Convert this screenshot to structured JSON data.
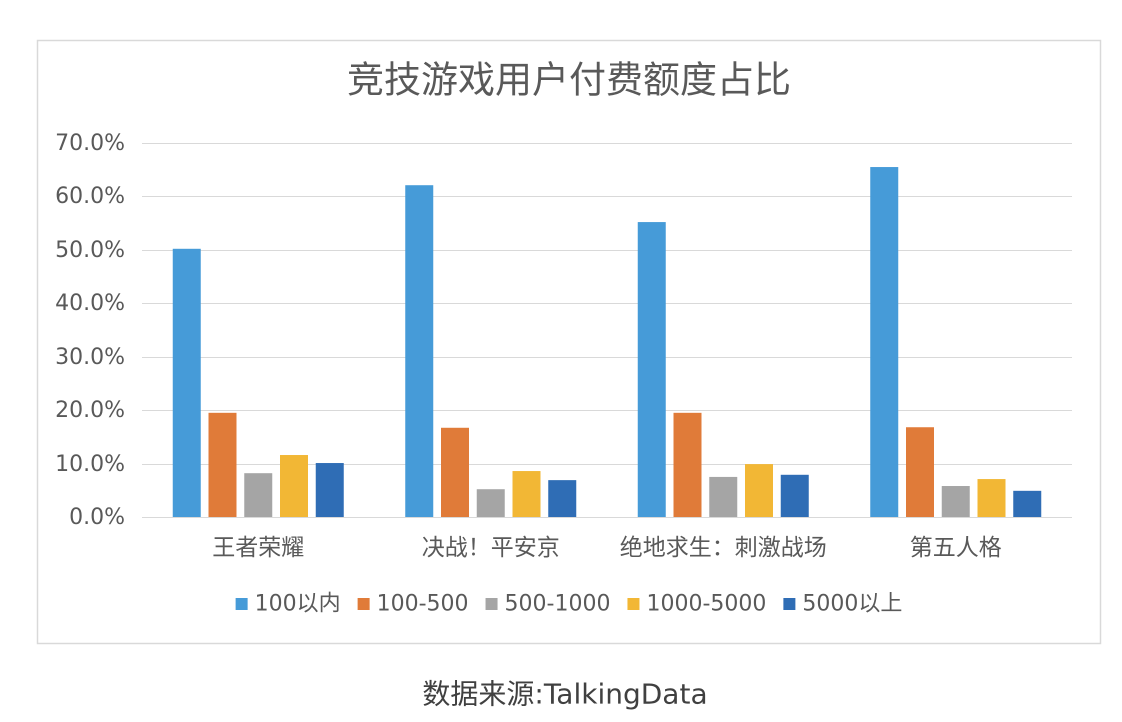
{
  "chart_data": {
    "type": "bar",
    "title": "竞技游戏用户付费额度占比",
    "categories": [
      "王者荣耀",
      "决战！平安京",
      "绝地求生：刺激战场",
      "第五人格"
    ],
    "series": [
      {
        "name": "100以内",
        "color": "#469bd8",
        "values": [
          50.2,
          62.1,
          55.2,
          65.5
        ]
      },
      {
        "name": "100-500",
        "color": "#e07b39",
        "values": [
          19.5,
          16.7,
          19.5,
          16.8
        ]
      },
      {
        "name": "500-1000",
        "color": "#a5a5a5",
        "values": [
          8.2,
          5.2,
          7.5,
          5.8
        ]
      },
      {
        "name": "1000-5000",
        "color": "#f2b735",
        "values": [
          11.6,
          8.6,
          9.9,
          7.1
        ]
      },
      {
        "name": "5000以上",
        "color": "#2f6db5",
        "values": [
          10.1,
          6.9,
          7.9,
          4.9
        ]
      }
    ],
    "ylim": [
      0,
      70
    ],
    "yticks": [
      {
        "value": 0,
        "label": "0.0%"
      },
      {
        "value": 10,
        "label": "10.0%"
      },
      {
        "value": 20,
        "label": "20.0%"
      },
      {
        "value": 30,
        "label": "30.0%"
      },
      {
        "value": 40,
        "label": "40.0%"
      },
      {
        "value": 50,
        "label": "50.0%"
      },
      {
        "value": 60,
        "label": "60.0%"
      },
      {
        "value": 70,
        "label": "70.0%"
      }
    ],
    "grid": true,
    "legend_position": "bottom"
  },
  "source": "数据来源:TalkingData"
}
